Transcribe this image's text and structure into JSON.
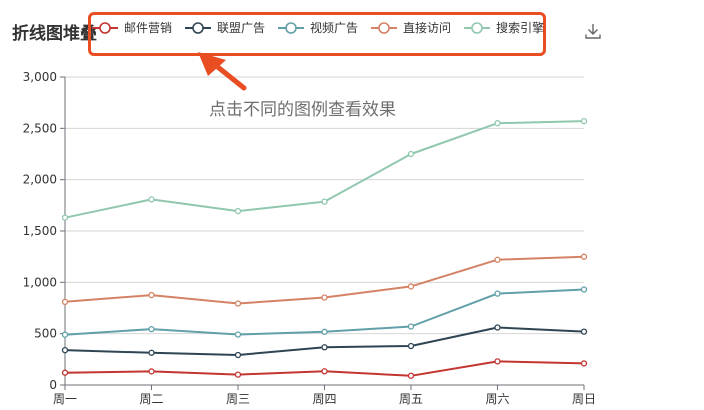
{
  "title": "折线图堆叠",
  "annotation": "点击不同的图例查看效果",
  "colors": {
    "axis": "#6e7079",
    "grid": "#d6d6d6",
    "highlight": "#e94d22",
    "icon": "#666666"
  },
  "icons": {
    "download": "download-icon"
  },
  "chart_data": {
    "type": "line",
    "categories": [
      "周一",
      "周二",
      "周三",
      "周四",
      "周五",
      "周六",
      "周日"
    ],
    "yticks": [
      "0",
      "500",
      "1,000",
      "1,500",
      "2,000",
      "2,500",
      "3,000"
    ],
    "ylim": [
      0,
      3000
    ],
    "grid": true,
    "stacked": true,
    "legend_position": "top",
    "series": [
      {
        "name": "邮件营销",
        "color": "#c23531",
        "values": [
          120,
          132,
          101,
          134,
          90,
          230,
          210
        ]
      },
      {
        "name": "联盟广告",
        "color": "#2f4554",
        "values": [
          340,
          314,
          292,
          368,
          380,
          560,
          520
        ]
      },
      {
        "name": "视频广告",
        "color": "#61a0a8",
        "values": [
          490,
          544,
          492,
          518,
          570,
          890,
          930
        ]
      },
      {
        "name": "直接访问",
        "color": "#d48265",
        "values": [
          810,
          876,
          794,
          852,
          960,
          1220,
          1250
        ]
      },
      {
        "name": "搜索引擎",
        "color": "#91c7ae",
        "values": [
          1630,
          1808,
          1694,
          1786,
          2250,
          2550,
          2570
        ]
      }
    ]
  }
}
